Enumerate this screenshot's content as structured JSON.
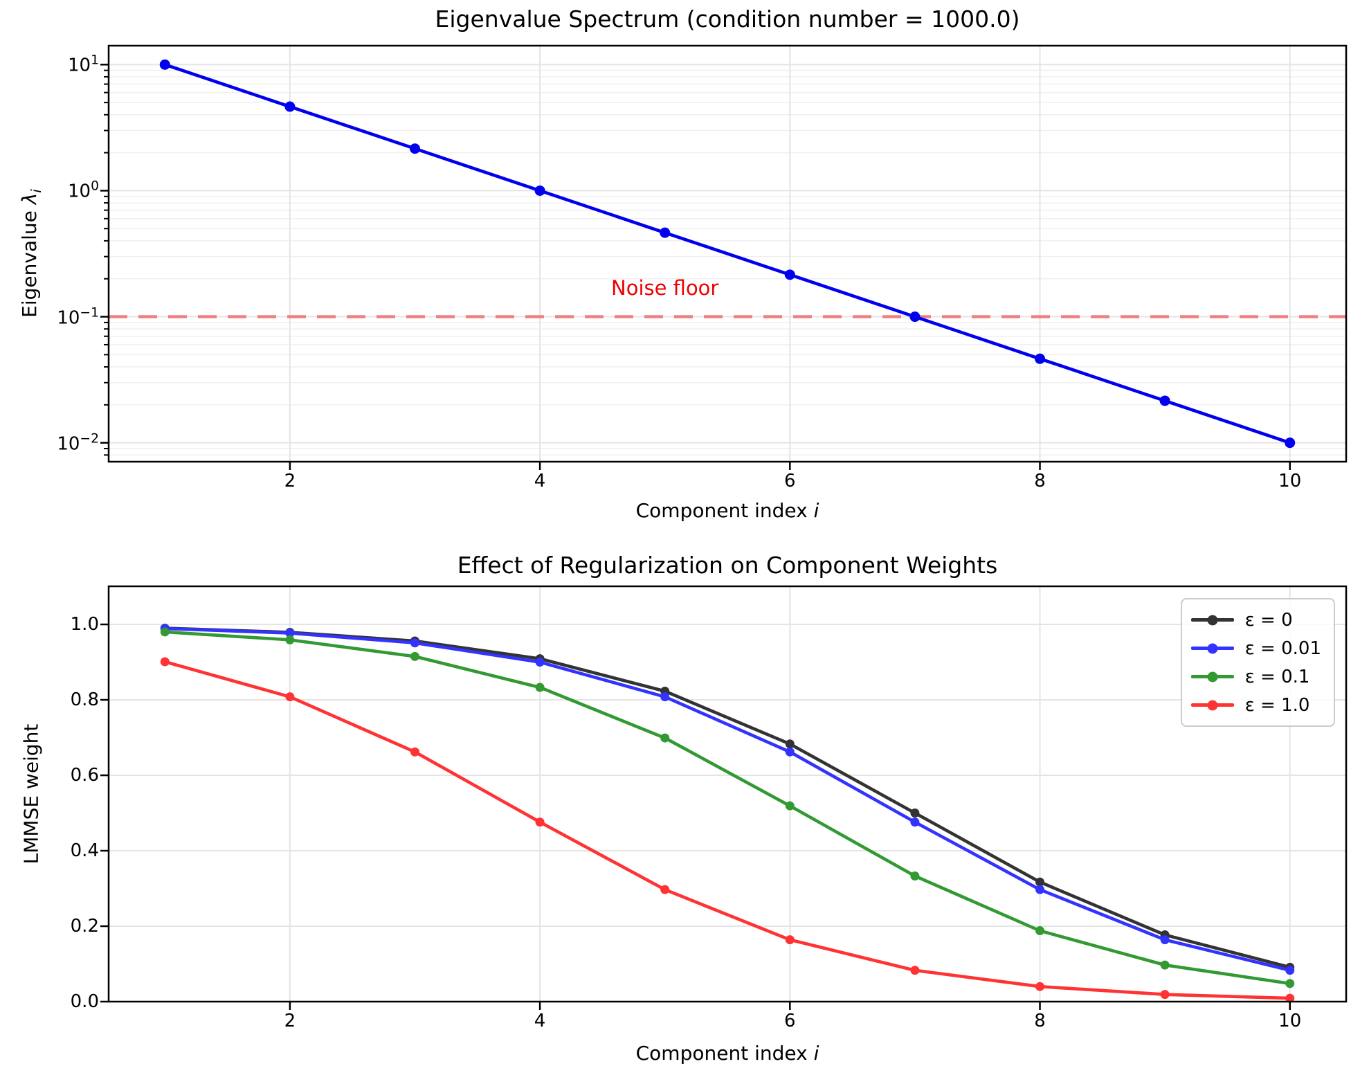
{
  "figure": {
    "background": "#ffffff"
  },
  "styles": {
    "grid_major": "#e4e4e4",
    "grid_minor": "#efefef",
    "spine_color": "#000000"
  },
  "chart_data": [
    {
      "type": "line",
      "title": "Eigenvalue Spectrum (condition number = 1000.0)",
      "xlabel": {
        "text": "Component index ",
        "italic_suffix": "i"
      },
      "ylabel": {
        "text": "Eigenvalue ",
        "symbol": "λ",
        "subscript": "i"
      },
      "yscale": "log",
      "grid": "both",
      "x": [
        1,
        2,
        3,
        4,
        5,
        6,
        7,
        8,
        9,
        10
      ],
      "series": [
        {
          "name": "eigenvalues",
          "color": "#0000ee",
          "marker": "circle",
          "values": [
            10.0,
            4.6416,
            2.1544,
            1.0,
            0.46416,
            0.21544,
            0.1,
            0.046416,
            0.021544,
            0.01
          ]
        }
      ],
      "noise_floor": {
        "value": 0.1,
        "line_color": "#f08080",
        "line_style": "dashed",
        "label": "Noise floor",
        "label_color": "#ee0000",
        "label_x": 5.0,
        "label_y": 0.17
      },
      "xlim": [
        0.55,
        10.45
      ],
      "ylim": [
        0.007079,
        14.125
      ],
      "xticks": [
        2,
        4,
        6,
        8,
        10
      ],
      "ytick_exponents": [
        1,
        0,
        -1,
        -2
      ]
    },
    {
      "type": "line",
      "title": "Effect of Regularization on Component Weights",
      "xlabel": {
        "text": "Component index ",
        "italic_suffix": "i"
      },
      "ylabel": {
        "text": "LMMSE weight"
      },
      "yscale": "linear",
      "grid": "major",
      "x": [
        1,
        2,
        3,
        4,
        5,
        6,
        7,
        8,
        9,
        10
      ],
      "series": [
        {
          "name": "ε = 0",
          "color": "#333333",
          "marker": "circle",
          "values": [
            0.99,
            0.979,
            0.956,
            0.909,
            0.823,
            0.683,
            0.5,
            0.317,
            0.177,
            0.091
          ]
        },
        {
          "name": "ε = 0.01",
          "color": "#3333ff",
          "marker": "circle",
          "values": [
            0.989,
            0.977,
            0.951,
            0.9,
            0.808,
            0.662,
            0.476,
            0.297,
            0.164,
            0.083
          ]
        },
        {
          "name": "ε = 0.1",
          "color": "#339933",
          "marker": "circle",
          "values": [
            0.98,
            0.959,
            0.915,
            0.833,
            0.699,
            0.519,
            0.333,
            0.188,
            0.097,
            0.048
          ]
        },
        {
          "name": "ε = 1.0",
          "color": "#ff3333",
          "marker": "circle",
          "values": [
            0.901,
            0.808,
            0.662,
            0.476,
            0.297,
            0.164,
            0.083,
            0.04,
            0.019,
            0.009
          ]
        }
      ],
      "xlim": [
        0.55,
        10.45
      ],
      "ylim": [
        0.0,
        1.101
      ],
      "xticks": [
        2,
        4,
        6,
        8,
        10
      ],
      "yticks": [
        0.0,
        0.2,
        0.4,
        0.6,
        0.8,
        1.0
      ],
      "legend": {
        "position": "upper right"
      }
    }
  ]
}
